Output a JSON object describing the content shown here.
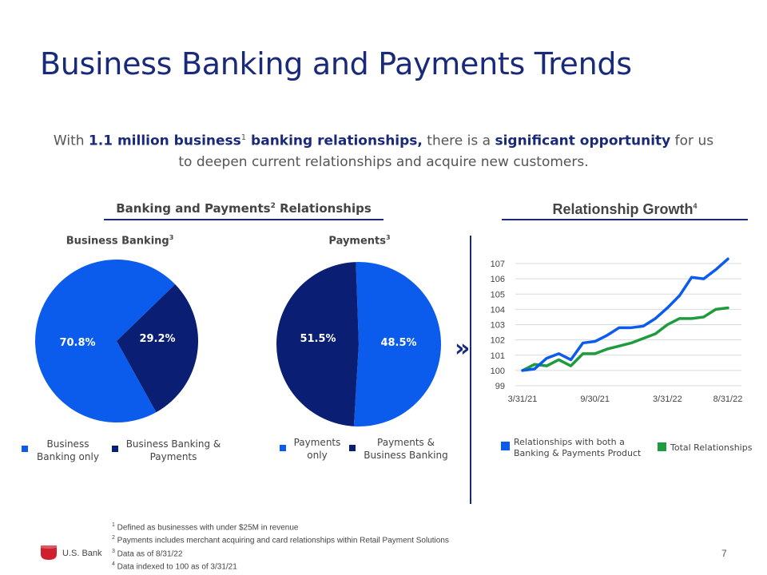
{
  "page": {
    "title": "Business Banking and Payments Trends",
    "intro": {
      "p1": "With ",
      "b1": "1.1 million business",
      "sup1": "1",
      "b2": " banking relationships,",
      "p2": " there is a ",
      "b3": "significant opportunity",
      "p3": " for us to deepen current relationships and acquire new customers."
    },
    "left_section": {
      "title": "Banking and Payments",
      "sup": "2",
      "suffix": " Relationships"
    },
    "right_section": {
      "title": "Relationship Growth",
      "sup": "4"
    },
    "page_number": "7",
    "logo_text": "U.S. Bank",
    "chevron": "»",
    "footnotes": [
      {
        "sup": "1",
        "text": " Defined as businesses with under $25M in revenue"
      },
      {
        "sup": "2",
        "text": " Payments includes merchant acquiring and card relationships within Retail Payment Solutions"
      },
      {
        "sup": "3",
        "text": " Data as of 8/31/22"
      },
      {
        "sup": "4",
        "text": " Data indexed to 100 as of 3/31/21"
      }
    ],
    "colors": {
      "navy": "#1a2a7a",
      "bright_blue": "#0b5ced",
      "dark_blue": "#0a1f74",
      "green": "#1e9b3c",
      "logo_red": "#d0202e"
    }
  },
  "chart_data": [
    {
      "type": "pie",
      "title": "Business Banking",
      "title_sup": "3",
      "slices": [
        {
          "name": "Business Banking only",
          "value": 70.8,
          "label": "70.8%",
          "color": "#0b5ced"
        },
        {
          "name": "Business Banking & Payments",
          "value": 29.2,
          "label": "29.2%",
          "color": "#0a1f74"
        }
      ]
    },
    {
      "type": "pie",
      "title": "Payments",
      "title_sup": "3",
      "slices": [
        {
          "name": "Payments only",
          "value": 51.5,
          "label": "51.5%",
          "color": "#0b5ced"
        },
        {
          "name": "Payments & Business Banking",
          "value": 48.5,
          "label": "48.5%",
          "color": "#0a1f74"
        }
      ]
    },
    {
      "type": "line",
      "title": "Relationship Growth",
      "ylim": [
        99,
        107
      ],
      "yticks": [
        "107",
        "106",
        "105",
        "104",
        "103",
        "102",
        "101",
        "100",
        "99"
      ],
      "xticks": [
        "3/31/21",
        "9/30/21",
        "3/31/22",
        "8/31/22"
      ],
      "x": [
        0,
        1,
        2,
        3,
        4,
        5,
        6,
        7,
        8,
        9,
        10,
        11,
        12,
        13,
        14,
        15,
        16,
        17
      ],
      "x_tick_positions": [
        0,
        6,
        12,
        17
      ],
      "series": [
        {
          "name": "Relationships with both a Banking & Payments Product",
          "color": "#0b5ced",
          "values": [
            100.0,
            100.1,
            100.8,
            101.1,
            100.7,
            101.8,
            101.9,
            102.3,
            102.8,
            102.8,
            102.9,
            103.4,
            104.1,
            104.9,
            106.1,
            106.0,
            106.6,
            107.3
          ]
        },
        {
          "name": "Total Relationships",
          "color": "#1e9b3c",
          "values": [
            100.0,
            100.4,
            100.3,
            100.7,
            100.3,
            101.1,
            101.1,
            101.4,
            101.6,
            101.8,
            102.1,
            102.4,
            103.0,
            103.4,
            103.4,
            103.5,
            104.0,
            104.1
          ]
        }
      ]
    }
  ]
}
